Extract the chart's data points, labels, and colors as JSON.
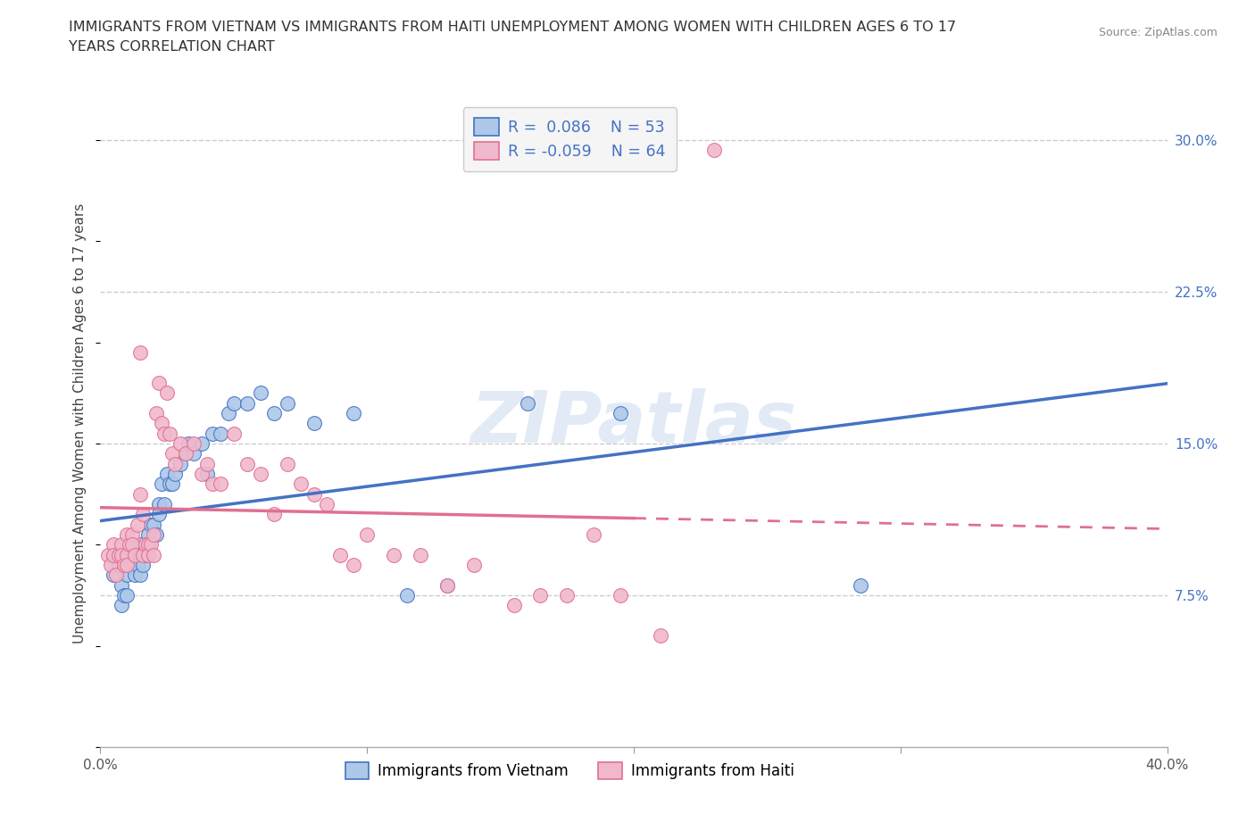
{
  "title_line1": "IMMIGRANTS FROM VIETNAM VS IMMIGRANTS FROM HAITI UNEMPLOYMENT AMONG WOMEN WITH CHILDREN AGES 6 TO 17",
  "title_line2": "YEARS CORRELATION CHART",
  "source": "Source: ZipAtlas.com",
  "ylabel": "Unemployment Among Women with Children Ages 6 to 17 years",
  "xlim": [
    0.0,
    0.4
  ],
  "ylim": [
    0.0,
    0.32
  ],
  "yticks_right": [
    0.075,
    0.15,
    0.225,
    0.3
  ],
  "ytick_labels_right": [
    "7.5%",
    "15.0%",
    "22.5%",
    "30.0%"
  ],
  "grid_color": "#cccccc",
  "background_color": "#ffffff",
  "watermark": "ZIPatlas",
  "legend_R1": "0.086",
  "legend_N1": "53",
  "legend_R2": "-0.059",
  "legend_N2": "64",
  "color_vietnam": "#adc8e8",
  "color_haiti": "#f0b8cc",
  "line_color_vietnam": "#4472c4",
  "line_color_haiti": "#e07090",
  "vietnam_x": [
    0.005,
    0.005,
    0.007,
    0.008,
    0.008,
    0.009,
    0.01,
    0.01,
    0.01,
    0.012,
    0.012,
    0.013,
    0.013,
    0.014,
    0.015,
    0.015,
    0.015,
    0.016,
    0.017,
    0.018,
    0.018,
    0.019,
    0.02,
    0.021,
    0.022,
    0.022,
    0.023,
    0.024,
    0.025,
    0.026,
    0.027,
    0.028,
    0.03,
    0.032,
    0.033,
    0.035,
    0.038,
    0.04,
    0.042,
    0.045,
    0.048,
    0.05,
    0.055,
    0.06,
    0.065,
    0.07,
    0.08,
    0.095,
    0.115,
    0.13,
    0.16,
    0.195,
    0.285
  ],
  "vietnam_y": [
    0.095,
    0.085,
    0.09,
    0.08,
    0.07,
    0.075,
    0.09,
    0.085,
    0.075,
    0.09,
    0.1,
    0.095,
    0.085,
    0.09,
    0.085,
    0.095,
    0.1,
    0.09,
    0.095,
    0.1,
    0.105,
    0.11,
    0.11,
    0.105,
    0.12,
    0.115,
    0.13,
    0.12,
    0.135,
    0.13,
    0.13,
    0.135,
    0.14,
    0.145,
    0.15,
    0.145,
    0.15,
    0.135,
    0.155,
    0.155,
    0.165,
    0.17,
    0.17,
    0.175,
    0.165,
    0.17,
    0.16,
    0.165,
    0.075,
    0.08,
    0.17,
    0.165,
    0.08
  ],
  "haiti_x": [
    0.003,
    0.004,
    0.005,
    0.005,
    0.006,
    0.007,
    0.008,
    0.008,
    0.009,
    0.01,
    0.01,
    0.01,
    0.011,
    0.012,
    0.012,
    0.013,
    0.014,
    0.015,
    0.015,
    0.016,
    0.016,
    0.017,
    0.018,
    0.018,
    0.019,
    0.02,
    0.02,
    0.021,
    0.022,
    0.023,
    0.024,
    0.025,
    0.026,
    0.027,
    0.028,
    0.03,
    0.032,
    0.035,
    0.038,
    0.04,
    0.042,
    0.045,
    0.05,
    0.055,
    0.06,
    0.065,
    0.07,
    0.075,
    0.08,
    0.085,
    0.09,
    0.095,
    0.1,
    0.11,
    0.12,
    0.13,
    0.14,
    0.155,
    0.165,
    0.175,
    0.185,
    0.195,
    0.21,
    0.23
  ],
  "haiti_y": [
    0.095,
    0.09,
    0.1,
    0.095,
    0.085,
    0.095,
    0.1,
    0.095,
    0.09,
    0.105,
    0.095,
    0.09,
    0.1,
    0.105,
    0.1,
    0.095,
    0.11,
    0.195,
    0.125,
    0.115,
    0.095,
    0.1,
    0.1,
    0.095,
    0.1,
    0.105,
    0.095,
    0.165,
    0.18,
    0.16,
    0.155,
    0.175,
    0.155,
    0.145,
    0.14,
    0.15,
    0.145,
    0.15,
    0.135,
    0.14,
    0.13,
    0.13,
    0.155,
    0.14,
    0.135,
    0.115,
    0.14,
    0.13,
    0.125,
    0.12,
    0.095,
    0.09,
    0.105,
    0.095,
    0.095,
    0.08,
    0.09,
    0.07,
    0.075,
    0.075,
    0.105,
    0.075,
    0.055,
    0.295
  ]
}
